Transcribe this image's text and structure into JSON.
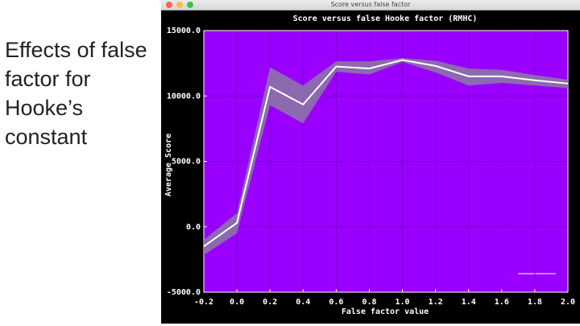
{
  "slide": {
    "title": "Effects of false factor for Hooke’s constant"
  },
  "window": {
    "title": "Score versus false factor"
  },
  "chart_data": {
    "type": "line",
    "title": "Score versus false Hooke factor (RMHC)",
    "xlabel": "False factor value",
    "ylabel": "Average Score",
    "x": [
      -0.2,
      0.0,
      0.2,
      0.4,
      0.6,
      0.8,
      1.0,
      1.2,
      1.4,
      1.6,
      1.8,
      2.0
    ],
    "series": [
      {
        "color": "#ffffff",
        "band_color": "#8c74a6",
        "values": [
          -1500,
          300,
          10700,
          9350,
          12250,
          12100,
          12750,
          12300,
          11500,
          11500,
          11200,
          10950
        ],
        "lower": [
          -2150,
          -500,
          9300,
          7900,
          11850,
          11650,
          12600,
          11800,
          10800,
          11000,
          10800,
          10600
        ],
        "upper": [
          -1000,
          1050,
          12200,
          10800,
          12650,
          12650,
          12900,
          12700,
          12100,
          12000,
          11600,
          11250
        ]
      }
    ],
    "xlim": [
      -0.2,
      2.0
    ],
    "xticks": [
      -0.2,
      {
        "value": 0,
        "label": "0.0"
      },
      0.2,
      0.4,
      0.6,
      0.8,
      {
        "value": 1,
        "label": "1.0"
      },
      1.2,
      1.4,
      1.6,
      1.8,
      {
        "value": 2,
        "label": "2.0"
      }
    ],
    "ylim": [
      -5000,
      15000
    ],
    "yticks": [
      {
        "value": -5000,
        "label": "-5000.0"
      },
      {
        "value": 0,
        "label": "0.0"
      },
      {
        "value": 5000,
        "label": "5000.0"
      },
      {
        "value": 10000,
        "label": "10000.0"
      },
      {
        "value": 15000,
        "label": "15000.0"
      }
    ],
    "grid": true,
    "background": "#9900ff",
    "grid_color": "#7d00d0"
  }
}
